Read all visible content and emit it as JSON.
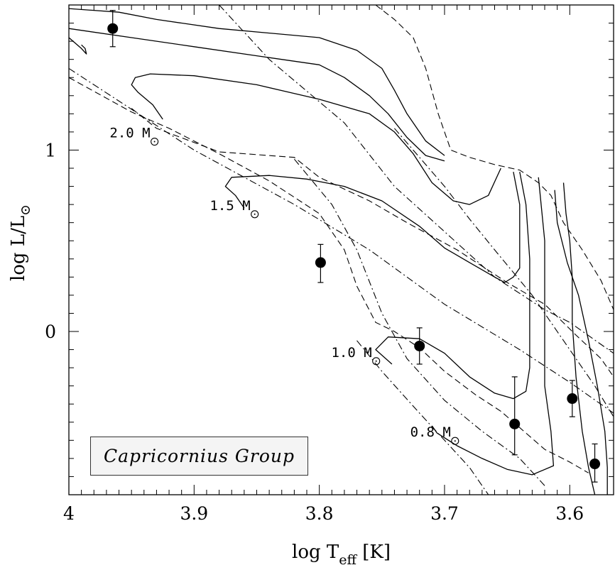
{
  "chart_data": {
    "type": "scatter",
    "title": "",
    "group_label": "Capricornius Group",
    "xlabel": "log T_eff [K]",
    "ylabel": "log L/L_⊙",
    "xlim": [
      4.0,
      3.565
    ],
    "ylim": [
      -0.9,
      1.8
    ],
    "x_ticks": [
      "4",
      "3.9",
      "3.8",
      "3.7",
      "3.6"
    ],
    "x_tick_values": [
      4.0,
      3.9,
      3.8,
      3.7,
      3.6
    ],
    "y_ticks": [
      "0",
      "1"
    ],
    "y_tick_values": [
      0,
      1
    ],
    "grid": false,
    "stars": [
      {
        "x": 3.965,
        "y": 1.67,
        "err_lo": 0.1,
        "err_hi": 0.1
      },
      {
        "x": 3.799,
        "y": 0.38,
        "err_lo": 0.11,
        "err_hi": 0.1
      },
      {
        "x": 3.72,
        "y": -0.08,
        "err_lo": 0.1,
        "err_hi": 0.1
      },
      {
        "x": 3.644,
        "y": -0.51,
        "err_lo": 0.17,
        "err_hi": 0.26
      },
      {
        "x": 3.598,
        "y": -0.37,
        "err_lo": 0.1,
        "err_hi": 0.1
      },
      {
        "x": 3.58,
        "y": -0.73,
        "err_lo": 0.1,
        "err_hi": 0.11
      }
    ],
    "mass_labels": [
      {
        "text": "2.0 M",
        "x": 3.935,
        "y": 1.07
      },
      {
        "text": "1.5 M",
        "x": 3.855,
        "y": 0.67
      },
      {
        "text": "1.0 M",
        "x": 3.758,
        "y": -0.14
      },
      {
        "text": "0.8 M",
        "x": 3.695,
        "y": -0.58
      }
    ],
    "tracks": [
      [
        [
          4.0,
          1.78
        ],
        [
          3.96,
          1.76
        ],
        [
          3.93,
          1.72
        ],
        [
          3.88,
          1.67
        ],
        [
          3.8,
          1.62
        ],
        [
          3.77,
          1.55
        ],
        [
          3.75,
          1.45
        ],
        [
          3.74,
          1.33
        ],
        [
          3.73,
          1.2
        ],
        [
          3.715,
          1.05
        ],
        [
          3.7,
          0.97
        ]
      ],
      [
        [
          3.99,
          1.58
        ],
        [
          3.987,
          1.56
        ],
        [
          3.986,
          1.53
        ],
        [
          3.99,
          1.56
        ],
        [
          4.0,
          1.62
        ]
      ],
      [
        [
          4.0,
          1.67
        ],
        [
          3.95,
          1.62
        ],
        [
          3.9,
          1.57
        ],
        [
          3.85,
          1.52
        ],
        [
          3.8,
          1.47
        ],
        [
          3.78,
          1.4
        ],
        [
          3.76,
          1.3
        ],
        [
          3.745,
          1.2
        ],
        [
          3.73,
          1.07
        ],
        [
          3.715,
          0.97
        ],
        [
          3.7,
          0.94
        ]
      ],
      [
        [
          3.925,
          1.17
        ],
        [
          3.933,
          1.25
        ],
        [
          3.945,
          1.32
        ],
        [
          3.95,
          1.36
        ],
        [
          3.947,
          1.4
        ],
        [
          3.935,
          1.42
        ],
        [
          3.9,
          1.41
        ],
        [
          3.85,
          1.36
        ],
        [
          3.8,
          1.28
        ],
        [
          3.76,
          1.2
        ],
        [
          3.74,
          1.1
        ],
        [
          3.725,
          0.98
        ],
        [
          3.71,
          0.82
        ],
        [
          3.693,
          0.72
        ],
        [
          3.68,
          0.7
        ],
        [
          3.665,
          0.75
        ],
        [
          3.655,
          0.9
        ]
      ],
      [
        [
          3.86,
          0.68
        ],
        [
          3.867,
          0.75
        ],
        [
          3.875,
          0.8
        ],
        [
          3.87,
          0.85
        ],
        [
          3.84,
          0.86
        ],
        [
          3.81,
          0.84
        ],
        [
          3.78,
          0.8
        ],
        [
          3.75,
          0.72
        ],
        [
          3.72,
          0.58
        ],
        [
          3.7,
          0.46
        ],
        [
          3.68,
          0.38
        ],
        [
          3.66,
          0.3
        ],
        [
          3.652,
          0.27
        ],
        [
          3.645,
          0.3
        ],
        [
          3.64,
          0.35
        ],
        [
          3.64,
          0.55
        ],
        [
          3.64,
          0.7
        ],
        [
          3.645,
          0.88
        ]
      ],
      [
        [
          3.742,
          -0.18
        ],
        [
          3.755,
          -0.1
        ],
        [
          3.745,
          -0.03
        ],
        [
          3.72,
          -0.04
        ],
        [
          3.7,
          -0.12
        ],
        [
          3.68,
          -0.25
        ],
        [
          3.66,
          -0.34
        ],
        [
          3.645,
          -0.37
        ],
        [
          3.635,
          -0.33
        ],
        [
          3.632,
          -0.2
        ],
        [
          3.632,
          0.1
        ],
        [
          3.632,
          0.4
        ],
        [
          3.635,
          0.7
        ],
        [
          3.64,
          0.88
        ]
      ],
      [
        [
          3.71,
          -0.52
        ],
        [
          3.706,
          -0.56
        ],
        [
          3.69,
          -0.63
        ],
        [
          3.67,
          -0.7
        ],
        [
          3.65,
          -0.76
        ],
        [
          3.63,
          -0.79
        ],
        [
          3.613,
          -0.74
        ],
        [
          3.615,
          -0.55
        ],
        [
          3.62,
          -0.3
        ],
        [
          3.62,
          0.1
        ],
        [
          3.62,
          0.5
        ],
        [
          3.625,
          0.85
        ]
      ],
      [
        [
          3.605,
          0.82
        ],
        [
          3.603,
          0.65
        ],
        [
          3.6,
          0.5
        ],
        [
          3.598,
          0.3
        ],
        [
          3.598,
          0.05
        ],
        [
          3.595,
          -0.25
        ],
        [
          3.59,
          -0.55
        ],
        [
          3.585,
          -0.75
        ],
        [
          3.58,
          -0.9
        ]
      ],
      [
        [
          3.612,
          0.78
        ],
        [
          3.61,
          0.6
        ],
        [
          3.602,
          0.38
        ],
        [
          3.593,
          0.2
        ],
        [
          3.585,
          -0.05
        ],
        [
          3.578,
          -0.3
        ],
        [
          3.572,
          -0.55
        ],
        [
          3.57,
          -0.75
        ],
        [
          3.57,
          -0.9
        ]
      ]
    ],
    "boundaries": [
      [
        [
          4.0,
          1.4
        ],
        [
          3.95,
          1.21
        ],
        [
          3.92,
          1.12
        ],
        [
          3.88,
          0.98
        ],
        [
          3.84,
          0.83
        ],
        [
          3.8,
          0.65
        ],
        [
          3.78,
          0.45
        ],
        [
          3.77,
          0.25
        ],
        [
          3.755,
          0.05
        ],
        [
          3.74,
          0.0
        ],
        [
          3.72,
          -0.09
        ],
        [
          3.7,
          -0.22
        ],
        [
          3.675,
          -0.35
        ],
        [
          3.655,
          -0.44
        ],
        [
          3.635,
          -0.56
        ],
        [
          3.62,
          -0.65
        ],
        [
          3.6,
          -0.72
        ],
        [
          3.585,
          -0.78
        ]
      ],
      [
        [
          3.95,
          1.23
        ],
        [
          3.93,
          1.12
        ],
        [
          3.88,
          0.99
        ],
        [
          3.82,
          0.96
        ],
        [
          3.8,
          0.85
        ],
        [
          3.76,
          0.72
        ],
        [
          3.73,
          0.6
        ],
        [
          3.69,
          0.45
        ],
        [
          3.65,
          0.27
        ],
        [
          3.62,
          0.15
        ],
        [
          3.595,
          -0.02
        ],
        [
          3.575,
          -0.15
        ],
        [
          3.565,
          -0.25
        ]
      ],
      [
        [
          3.755,
          1.8
        ],
        [
          3.74,
          1.72
        ],
        [
          3.725,
          1.62
        ],
        [
          3.715,
          1.45
        ],
        [
          3.705,
          1.2
        ],
        [
          3.695,
          1.0
        ],
        [
          3.68,
          0.96
        ],
        [
          3.66,
          0.92
        ],
        [
          3.64,
          0.89
        ],
        [
          3.625,
          0.82
        ],
        [
          3.615,
          0.75
        ],
        [
          3.605,
          0.6
        ],
        [
          3.59,
          0.45
        ],
        [
          3.575,
          0.28
        ],
        [
          3.565,
          0.12
        ]
      ]
    ],
    "isochrones": [
      [
        [
          3.88,
          1.8
        ],
        [
          3.84,
          1.5
        ],
        [
          3.78,
          1.15
        ],
        [
          3.74,
          0.8
        ],
        [
          3.7,
          0.55
        ],
        [
          3.66,
          0.3
        ],
        [
          3.62,
          0.12
        ],
        [
          3.6,
          0.05
        ],
        [
          3.565,
          -0.12
        ]
      ],
      [
        [
          4.0,
          1.45
        ],
        [
          3.9,
          1.0
        ],
        [
          3.82,
          0.7
        ],
        [
          3.76,
          0.45
        ],
        [
          3.7,
          0.15
        ],
        [
          3.64,
          -0.1
        ],
        [
          3.6,
          -0.28
        ],
        [
          3.565,
          -0.45
        ]
      ],
      [
        [
          3.74,
          1.12
        ],
        [
          3.7,
          0.8
        ],
        [
          3.68,
          0.62
        ],
        [
          3.66,
          0.45
        ],
        [
          3.63,
          0.2
        ],
        [
          3.6,
          -0.1
        ],
        [
          3.58,
          -0.3
        ],
        [
          3.565,
          -0.47
        ]
      ],
      [
        [
          3.82,
          0.95
        ],
        [
          3.79,
          0.7
        ],
        [
          3.77,
          0.45
        ],
        [
          3.75,
          0.1
        ],
        [
          3.73,
          -0.15
        ],
        [
          3.7,
          -0.38
        ],
        [
          3.67,
          -0.55
        ],
        [
          3.64,
          -0.7
        ],
        [
          3.62,
          -0.85
        ]
      ],
      [
        [
          3.77,
          -0.05
        ],
        [
          3.75,
          -0.22
        ],
        [
          3.72,
          -0.45
        ],
        [
          3.7,
          -0.6
        ],
        [
          3.68,
          -0.75
        ],
        [
          3.665,
          -0.9
        ]
      ]
    ]
  }
}
